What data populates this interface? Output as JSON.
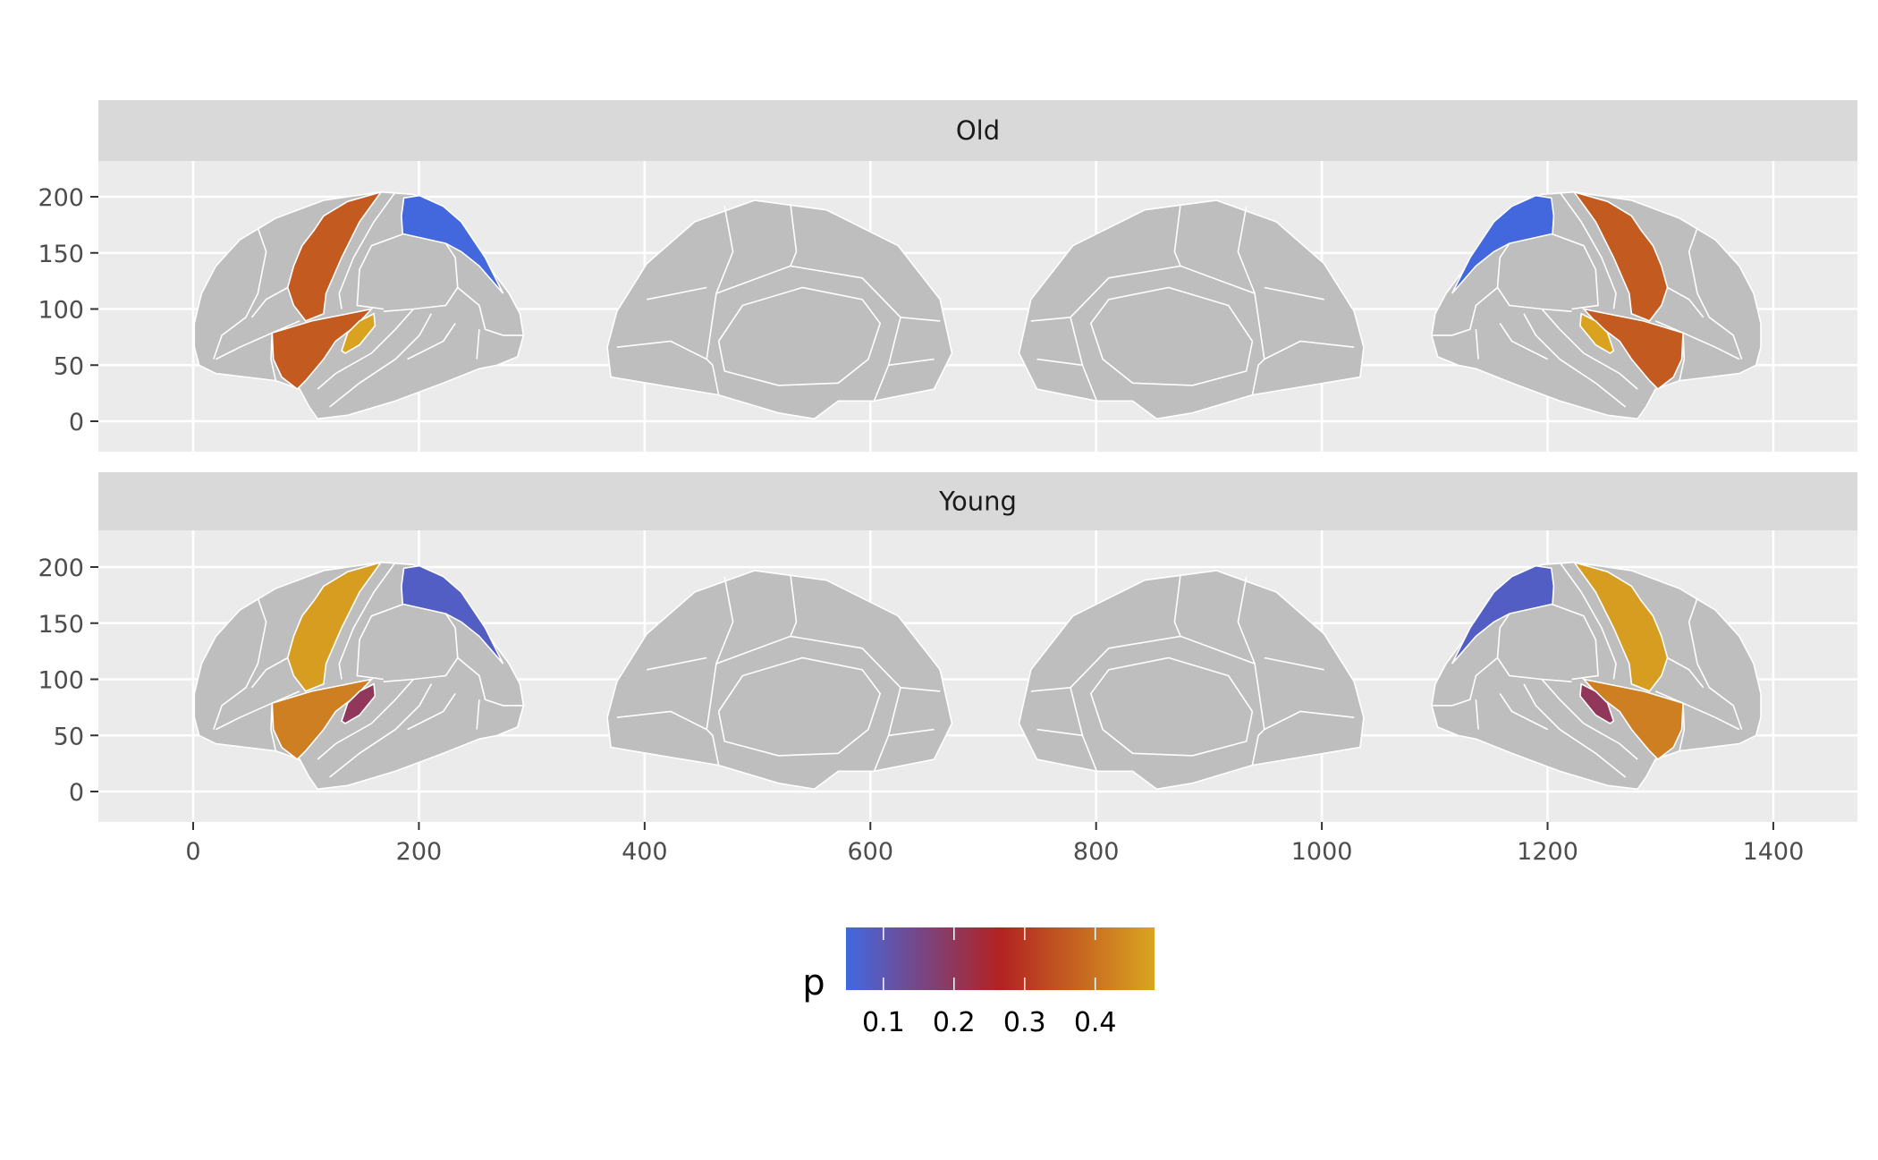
{
  "chart_data": {
    "type": "choropleth",
    "title": "",
    "xlabel": "",
    "ylabel": "",
    "xlim": [
      -84,
      1475
    ],
    "ylim": [
      -27,
      232
    ],
    "x_ticks": [
      0,
      200,
      400,
      600,
      800,
      1000,
      1200,
      1400
    ],
    "x_tick_labels": [
      "0",
      "200",
      "400",
      "600",
      "800",
      "1000",
      "1200",
      "1400"
    ],
    "y_ticks": [
      0,
      50,
      100,
      150,
      200
    ],
    "y_tick_labels": [
      "0",
      "50",
      "100",
      "150",
      "200"
    ],
    "grid": true,
    "views": [
      "left lateral",
      "left medial",
      "right medial",
      "right lateral"
    ],
    "facets": [
      {
        "label": "Old",
        "regions": [
          {
            "name": "precentral",
            "value": 0.36
          },
          {
            "name": "insula",
            "value": 0.36
          },
          {
            "name": "transversetemporal",
            "value": 0.48
          },
          {
            "name": "superiorparietal",
            "value": 0.05
          }
        ]
      },
      {
        "label": "Young",
        "regions": [
          {
            "name": "precentral",
            "value": 0.47
          },
          {
            "name": "insula",
            "value": 0.42
          },
          {
            "name": "transversetemporal",
            "value": 0.2
          },
          {
            "name": "superiorparietal",
            "value": 0.08
          }
        ]
      }
    ],
    "legend": {
      "title": "p",
      "position": "bottom",
      "range": [
        0.047,
        0.484
      ],
      "midpoint": 0.265,
      "ticks": [
        0.1,
        0.2,
        0.3,
        0.4
      ],
      "tick_labels": [
        "0.1",
        "0.2",
        "0.3",
        "0.4"
      ],
      "low_color": "#4169e1",
      "mid_color": "#b22222",
      "high_color": "#daa520"
    },
    "na_color": "#bebebe",
    "panel_background": "#ebebeb",
    "strip_background": "#d9d9d9"
  }
}
